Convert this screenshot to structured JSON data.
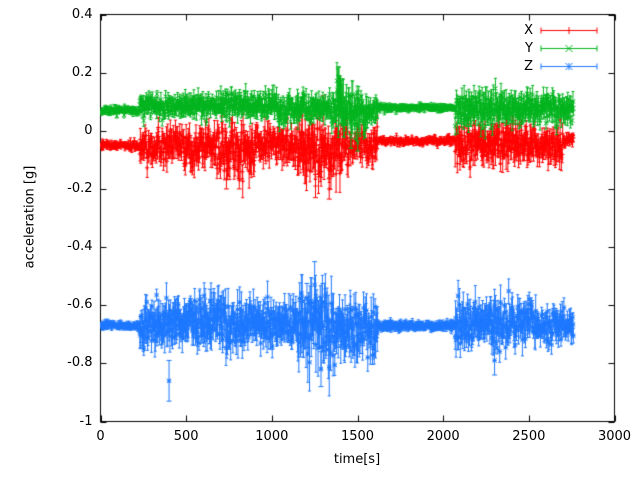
{
  "figure": {
    "background": "#ffffff",
    "border_color": "#000000",
    "text_color": "#000000"
  },
  "chart_data": {
    "type": "scatter",
    "style": "yerrorbars-with-point-markers",
    "title": "",
    "xlabel": "time[s]",
    "ylabel": "acceleration [g]",
    "xlim": [
      0,
      3000
    ],
    "ylim": [
      -1,
      0.4
    ],
    "grid": false,
    "legend_position": "top-right-inside",
    "x_ticks": {
      "values": [
        0,
        500,
        1000,
        1500,
        2000,
        2500,
        3000
      ],
      "labels": [
        "0",
        "500",
        "1000",
        "1500",
        "2000",
        "2500",
        "3000"
      ]
    },
    "y_ticks": {
      "values": [
        -1,
        -0.8,
        -0.6,
        -0.4,
        -0.2,
        0,
        0.2,
        0.4
      ],
      "labels": [
        "-1",
        "-0.8",
        "-0.6",
        "-0.4",
        "-0.2",
        "0",
        "0.2",
        "0.4"
      ]
    },
    "t_start": 0,
    "t_end": 2760,
    "sample_interval_s": 2.5,
    "series": [
      {
        "name": "X",
        "color": "#ff0000",
        "marker": "plus",
        "segments": [
          [
            0,
            230,
            -0.05,
            0.015
          ],
          [
            230,
            480,
            -0.05,
            0.05
          ],
          [
            480,
            700,
            -0.06,
            0.06
          ],
          [
            700,
            900,
            -0.07,
            0.08
          ],
          [
            900,
            1150,
            -0.05,
            0.055
          ],
          [
            1150,
            1450,
            -0.07,
            0.09
          ],
          [
            1450,
            1620,
            -0.05,
            0.05
          ],
          [
            1620,
            2070,
            -0.035,
            0.012
          ],
          [
            2070,
            2450,
            -0.045,
            0.065
          ],
          [
            2450,
            2700,
            -0.05,
            0.06
          ],
          [
            2700,
            2760,
            -0.03,
            0.02
          ]
        ],
        "spikes": [
          [
            735,
            -0.165,
            0.035
          ],
          [
            810,
            -0.17,
            0.03
          ],
          [
            1255,
            -0.19,
            0.04
          ],
          [
            1300,
            0.07,
            0.05
          ],
          [
            1335,
            -0.2,
            0.035
          ]
        ]
      },
      {
        "name": "Y",
        "color": "#00b41e",
        "marker": "cross",
        "segments": [
          [
            0,
            230,
            0.07,
            0.012
          ],
          [
            230,
            700,
            0.085,
            0.035
          ],
          [
            700,
            1000,
            0.09,
            0.04
          ],
          [
            1000,
            1380,
            0.08,
            0.045
          ],
          [
            1380,
            1420,
            0.1,
            0.1
          ],
          [
            1420,
            1560,
            0.05,
            0.07
          ],
          [
            1560,
            1620,
            0.07,
            0.04
          ],
          [
            1620,
            2070,
            0.08,
            0.012
          ],
          [
            2070,
            2300,
            0.07,
            0.055
          ],
          [
            2300,
            2550,
            0.08,
            0.05
          ],
          [
            2550,
            2760,
            0.075,
            0.045
          ]
        ],
        "spikes": [
          [
            1388,
            0.16,
            0.06
          ],
          [
            1402,
            0.13,
            0.05
          ],
          [
            1462,
            -0.02,
            0.04
          ],
          [
            1502,
            -0.04,
            0.03
          ]
        ]
      },
      {
        "name": "Z",
        "color": "#1e78ff",
        "marker": "star",
        "segments": [
          [
            0,
            230,
            -0.67,
            0.012
          ],
          [
            230,
            420,
            -0.67,
            0.07
          ],
          [
            420,
            900,
            -0.655,
            0.08
          ],
          [
            900,
            1150,
            -0.67,
            0.07
          ],
          [
            1150,
            1350,
            -0.67,
            0.12
          ],
          [
            1350,
            1620,
            -0.68,
            0.09
          ],
          [
            1620,
            2070,
            -0.67,
            0.015
          ],
          [
            2070,
            2550,
            -0.66,
            0.07
          ],
          [
            2550,
            2760,
            -0.67,
            0.05
          ]
        ],
        "spikes": [
          [
            400,
            -0.86,
            0.07
          ],
          [
            640,
            -0.585,
            0.04
          ],
          [
            1205,
            -0.575,
            0.05
          ],
          [
            1250,
            -0.53,
            0.08
          ],
          [
            1287,
            -0.82,
            0.06
          ],
          [
            2300,
            -0.79,
            0.05
          ]
        ]
      }
    ]
  }
}
